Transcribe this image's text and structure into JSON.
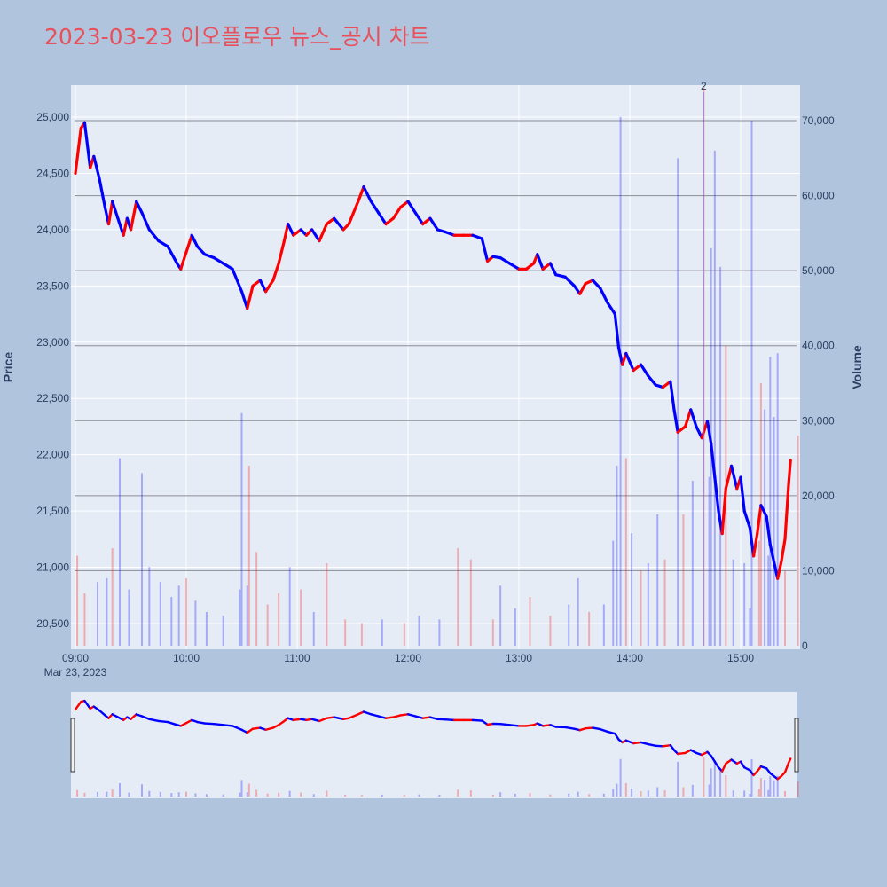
{
  "title": "2023-03-23 이오플로우 뉴스_공시 차트",
  "colors": {
    "up": "#ff0000",
    "down": "#0000ff",
    "background": "#b0c4de",
    "plot_bg": "#e5ecf6",
    "title": "#e8505b"
  },
  "chart_data": {
    "type": "candlestick",
    "title": "2023-03-23 이오플로우 뉴스_공시 차트",
    "xlabel": "",
    "y_left_label": "Price",
    "y_right_label": "Volume",
    "x_tick_labels": [
      "09:00",
      "10:00",
      "11:00",
      "12:00",
      "13:00",
      "14:00",
      "15:00"
    ],
    "x_date_label": "Mar 23, 2023",
    "x_range": [
      "09:00",
      "15:32"
    ],
    "price_ticks": [
      "20,500",
      "21,000",
      "21,500",
      "22,000",
      "22,500",
      "23,000",
      "23,500",
      "24,000",
      "24,500",
      "25,000"
    ],
    "price_range": [
      20300,
      25100
    ],
    "volume_ticks": [
      "0",
      "10,000",
      "20,000",
      "30,000",
      "40,000",
      "50,000",
      "60,000",
      "70,000"
    ],
    "volume_range": [
      0,
      71000
    ],
    "news_marker": {
      "time": "14:40",
      "label": "2"
    },
    "price_path": [
      [
        "09:00",
        24500
      ],
      [
        "09:03",
        24900
      ],
      [
        "09:05",
        24950
      ],
      [
        "09:08",
        24550
      ],
      [
        "09:10",
        24650
      ],
      [
        "09:13",
        24450
      ],
      [
        "09:16",
        24200
      ],
      [
        "09:18",
        24050
      ],
      [
        "09:20",
        24250
      ],
      [
        "09:23",
        24100
      ],
      [
        "09:26",
        23950
      ],
      [
        "09:28",
        24100
      ],
      [
        "09:30",
        24000
      ],
      [
        "09:33",
        24250
      ],
      [
        "09:36",
        24150
      ],
      [
        "09:40",
        24000
      ],
      [
        "09:45",
        23900
      ],
      [
        "09:50",
        23850
      ],
      [
        "09:55",
        23700
      ],
      [
        "09:57",
        23650
      ],
      [
        "10:00",
        23800
      ],
      [
        "10:03",
        23950
      ],
      [
        "10:06",
        23850
      ],
      [
        "10:10",
        23780
      ],
      [
        "10:15",
        23750
      ],
      [
        "10:20",
        23700
      ],
      [
        "10:25",
        23650
      ],
      [
        "10:30",
        23450
      ],
      [
        "10:33",
        23300
      ],
      [
        "10:36",
        23500
      ],
      [
        "10:40",
        23550
      ],
      [
        "10:43",
        23450
      ],
      [
        "10:47",
        23550
      ],
      [
        "10:50",
        23700
      ],
      [
        "10:53",
        23900
      ],
      [
        "10:55",
        24050
      ],
      [
        "10:58",
        23950
      ],
      [
        "11:02",
        24000
      ],
      [
        "11:05",
        23950
      ],
      [
        "11:08",
        24000
      ],
      [
        "11:12",
        23900
      ],
      [
        "11:16",
        24050
      ],
      [
        "11:20",
        24100
      ],
      [
        "11:25",
        24000
      ],
      [
        "11:28",
        24050
      ],
      [
        "11:33",
        24250
      ],
      [
        "11:36",
        24380
      ],
      [
        "11:40",
        24250
      ],
      [
        "11:44",
        24150
      ],
      [
        "11:48",
        24050
      ],
      [
        "11:52",
        24100
      ],
      [
        "11:56",
        24200
      ],
      [
        "12:00",
        24250
      ],
      [
        "12:04",
        24150
      ],
      [
        "12:08",
        24050
      ],
      [
        "12:12",
        24100
      ],
      [
        "12:16",
        24000
      ],
      [
        "12:20",
        23980
      ],
      [
        "12:25",
        23950
      ],
      [
        "12:30",
        23950
      ],
      [
        "12:35",
        23950
      ],
      [
        "12:40",
        23920
      ],
      [
        "12:43",
        23720
      ],
      [
        "12:46",
        23760
      ],
      [
        "12:50",
        23750
      ],
      [
        "12:55",
        23700
      ],
      [
        "13:00",
        23650
      ],
      [
        "13:04",
        23650
      ],
      [
        "13:08",
        23700
      ],
      [
        "13:10",
        23780
      ],
      [
        "13:13",
        23650
      ],
      [
        "13:17",
        23700
      ],
      [
        "13:20",
        23600
      ],
      [
        "13:25",
        23580
      ],
      [
        "13:30",
        23500
      ],
      [
        "13:33",
        23430
      ],
      [
        "13:36",
        23520
      ],
      [
        "13:40",
        23550
      ],
      [
        "13:44",
        23480
      ],
      [
        "13:48",
        23350
      ],
      [
        "13:52",
        23250
      ],
      [
        "13:54",
        22950
      ],
      [
        "13:56",
        22800
      ],
      [
        "13:58",
        22900
      ],
      [
        "14:02",
        22750
      ],
      [
        "14:06",
        22800
      ],
      [
        "14:10",
        22700
      ],
      [
        "14:14",
        22620
      ],
      [
        "14:18",
        22600
      ],
      [
        "14:22",
        22650
      ],
      [
        "14:24",
        22400
      ],
      [
        "14:26",
        22200
      ],
      [
        "14:30",
        22250
      ],
      [
        "14:33",
        22400
      ],
      [
        "14:36",
        22250
      ],
      [
        "14:39",
        22150
      ],
      [
        "14:42",
        22300
      ],
      [
        "14:44",
        22100
      ],
      [
        "14:46",
        21800
      ],
      [
        "14:48",
        21500
      ],
      [
        "14:50",
        21300
      ],
      [
        "14:52",
        21700
      ],
      [
        "14:55",
        21900
      ],
      [
        "14:58",
        21700
      ],
      [
        "15:00",
        21800
      ],
      [
        "15:02",
        21500
      ],
      [
        "15:05",
        21350
      ],
      [
        "15:07",
        21100
      ],
      [
        "15:09",
        21300
      ],
      [
        "15:11",
        21550
      ],
      [
        "15:14",
        21450
      ],
      [
        "15:16",
        21200
      ],
      [
        "15:18",
        21050
      ],
      [
        "15:20",
        20900
      ],
      [
        "15:22",
        21050
      ],
      [
        "15:24",
        21250
      ],
      [
        "15:26",
        21750
      ],
      [
        "15:27",
        21950
      ]
    ],
    "volume_bars": [
      [
        "09:01",
        12000
      ],
      [
        "09:05",
        7000
      ],
      [
        "09:12",
        8500
      ],
      [
        "09:17",
        9000
      ],
      [
        "09:20",
        13000
      ],
      [
        "09:24",
        25000
      ],
      [
        "09:29",
        7500
      ],
      [
        "09:36",
        23000
      ],
      [
        "09:40",
        10500
      ],
      [
        "09:46",
        8500
      ],
      [
        "09:52",
        6500
      ],
      [
        "09:56",
        8000
      ],
      [
        "10:00",
        9000
      ],
      [
        "10:05",
        6000
      ],
      [
        "10:11",
        4500
      ],
      [
        "10:20",
        4000
      ],
      [
        "10:29",
        7500
      ],
      [
        "10:30",
        31000
      ],
      [
        "10:33",
        8000
      ],
      [
        "10:34",
        24000
      ],
      [
        "10:38",
        12500
      ],
      [
        "10:44",
        5500
      ],
      [
        "10:50",
        7000
      ],
      [
        "10:56",
        10500
      ],
      [
        "11:02",
        7500
      ],
      [
        "11:09",
        4500
      ],
      [
        "11:16",
        11000
      ],
      [
        "11:26",
        3500
      ],
      [
        "11:35",
        3000
      ],
      [
        "11:46",
        3500
      ],
      [
        "11:58",
        3000
      ],
      [
        "12:06",
        4000
      ],
      [
        "12:17",
        3500
      ],
      [
        "12:27",
        13000
      ],
      [
        "12:34",
        11500
      ],
      [
        "12:46",
        3500
      ],
      [
        "12:50",
        8000
      ],
      [
        "12:58",
        5000
      ],
      [
        "13:06",
        6500
      ],
      [
        "13:17",
        4000
      ],
      [
        "13:27",
        5500
      ],
      [
        "13:32",
        9000
      ],
      [
        "13:38",
        4500
      ],
      [
        "13:46",
        5500
      ],
      [
        "13:51",
        14000
      ],
      [
        "13:53",
        24000
      ],
      [
        "13:55",
        70500
      ],
      [
        "13:58",
        25000
      ],
      [
        "14:01",
        15000
      ],
      [
        "14:06",
        10000
      ],
      [
        "14:10",
        11000
      ],
      [
        "14:15",
        17500
      ],
      [
        "14:19",
        11500
      ],
      [
        "14:26",
        65000
      ],
      [
        "14:29",
        17500
      ],
      [
        "14:34",
        22000
      ],
      [
        "14:40",
        74500
      ],
      [
        "14:43",
        22500
      ],
      [
        "14:44",
        53000
      ],
      [
        "14:46",
        66000
      ],
      [
        "14:49",
        50500
      ],
      [
        "14:52",
        40000
      ],
      [
        "14:56",
        11500
      ],
      [
        "15:02",
        11000
      ],
      [
        "15:05",
        5000
      ],
      [
        "15:06",
        70000
      ],
      [
        "15:10",
        14000
      ],
      [
        "15:11",
        35000
      ],
      [
        "15:13",
        31500
      ],
      [
        "15:15",
        12000
      ],
      [
        "15:16",
        38500
      ],
      [
        "15:18",
        30500
      ],
      [
        "15:20",
        39000
      ],
      [
        "15:24",
        10000
      ],
      [
        "15:31",
        28000
      ]
    ]
  }
}
